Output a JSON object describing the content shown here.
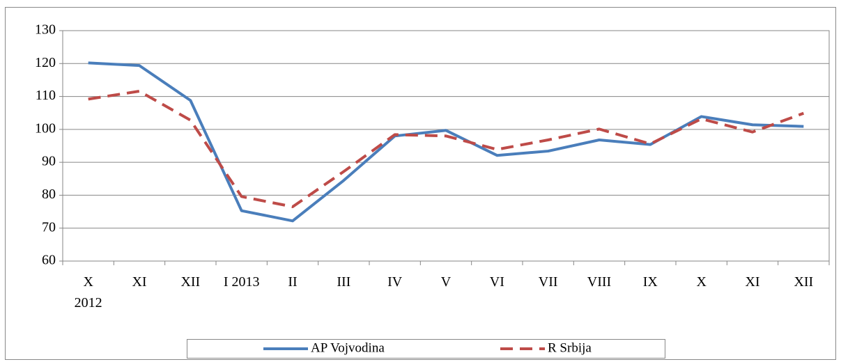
{
  "chart_data": {
    "type": "line",
    "categories": [
      "X\n2012",
      "XI",
      "XII",
      "I 2013",
      "II",
      "III",
      "IV",
      "V",
      "VI",
      "VII",
      "VIII",
      "IX",
      "X",
      "XI",
      "XII"
    ],
    "series": [
      {
        "name": "AP Vojvodina",
        "color": "#4a7ebb",
        "dash": false,
        "values": [
          120.2,
          119.4,
          108.8,
          75.3,
          72.2,
          84.5,
          98.0,
          99.7,
          92.1,
          93.4,
          96.8,
          95.4,
          103.9,
          101.4,
          100.9
        ]
      },
      {
        "name": "R Srbija",
        "color": "#be4b48",
        "dash": true,
        "values": [
          109.2,
          111.6,
          102.8,
          79.6,
          76.5,
          87.2,
          98.4,
          98.0,
          93.9,
          96.8,
          100.1,
          95.6,
          103.2,
          99.2,
          104.9
        ]
      }
    ],
    "ylim": [
      60,
      130
    ],
    "yticks": [
      60,
      70,
      80,
      90,
      100,
      110,
      120,
      130
    ],
    "grid": true,
    "legend": "bottom"
  }
}
